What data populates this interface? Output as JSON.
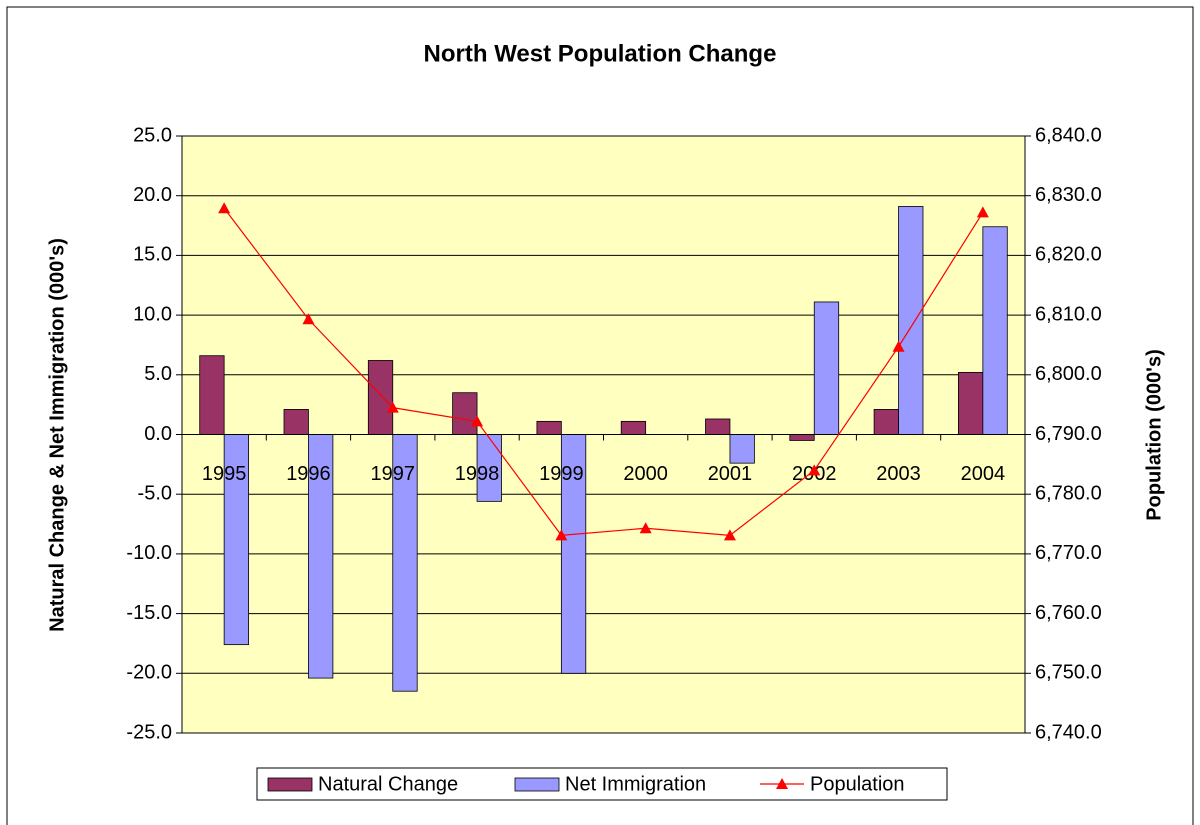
{
  "chart_data": {
    "type": "bar_line",
    "title": "North West Population Change",
    "y_label": "Natural Change & Net Immigration (000's)",
    "y2_label": "Population (000's)",
    "categories": [
      "1995",
      "1996",
      "1997",
      "1998",
      "1999",
      "2000",
      "2001",
      "2002",
      "2003",
      "2004"
    ],
    "series": [
      {
        "name": "Natural Change",
        "color": "#993366",
        "type": "bar",
        "values": [
          6.6,
          2.1,
          6.2,
          3.5,
          1.1,
          1.1,
          1.3,
          -0.5,
          2.1,
          5.2
        ]
      },
      {
        "name": "Net Immigration",
        "color": "#9999ff",
        "type": "bar",
        "values": [
          -17.6,
          -20.4,
          -21.5,
          -5.6,
          -20.0,
          0,
          -2.4,
          11.1,
          19.1,
          17.4
        ]
      },
      {
        "name": "Population",
        "color": "#ff0000",
        "type": "line",
        "axis": "y2",
        "values": [
          6827.9,
          6809.3,
          6794.5,
          6792.2,
          6773.1,
          6774.3,
          6773.1,
          6784.0,
          6804.7,
          6827.2
        ]
      }
    ],
    "ylim": [
      -25,
      25
    ],
    "yticks": [
      {
        "value": -25,
        "label": "-25.0"
      },
      {
        "value": -20,
        "label": "-20.0"
      },
      {
        "value": -15,
        "label": "-15.0"
      },
      {
        "value": -10,
        "label": "-10.0"
      },
      {
        "value": -5,
        "label": "-5.0"
      },
      {
        "value": 0,
        "label": "0.0"
      },
      {
        "value": 5,
        "label": "5.0"
      },
      {
        "value": 10,
        "label": "10.0"
      },
      {
        "value": 15,
        "label": "15.0"
      },
      {
        "value": 20,
        "label": "20.0"
      },
      {
        "value": 25,
        "label": "25.0"
      }
    ],
    "y2lim": [
      6740,
      6840
    ],
    "y2ticks": [
      {
        "value": 6740,
        "label": "6,740.0"
      },
      {
        "value": 6750,
        "label": "6,750.0"
      },
      {
        "value": 6760,
        "label": "6,760.0"
      },
      {
        "value": 6770,
        "label": "6,770.0"
      },
      {
        "value": 6780,
        "label": "6,780.0"
      },
      {
        "value": 6790,
        "label": "6,790.0"
      },
      {
        "value": 6800,
        "label": "6,800.0"
      },
      {
        "value": 6810,
        "label": "6,810.0"
      },
      {
        "value": 6820,
        "label": "6,820.0"
      },
      {
        "value": 6830,
        "label": "6,830.0"
      },
      {
        "value": 6840,
        "label": "6,840.0"
      }
    ],
    "grid": true,
    "legend": "bottom"
  }
}
